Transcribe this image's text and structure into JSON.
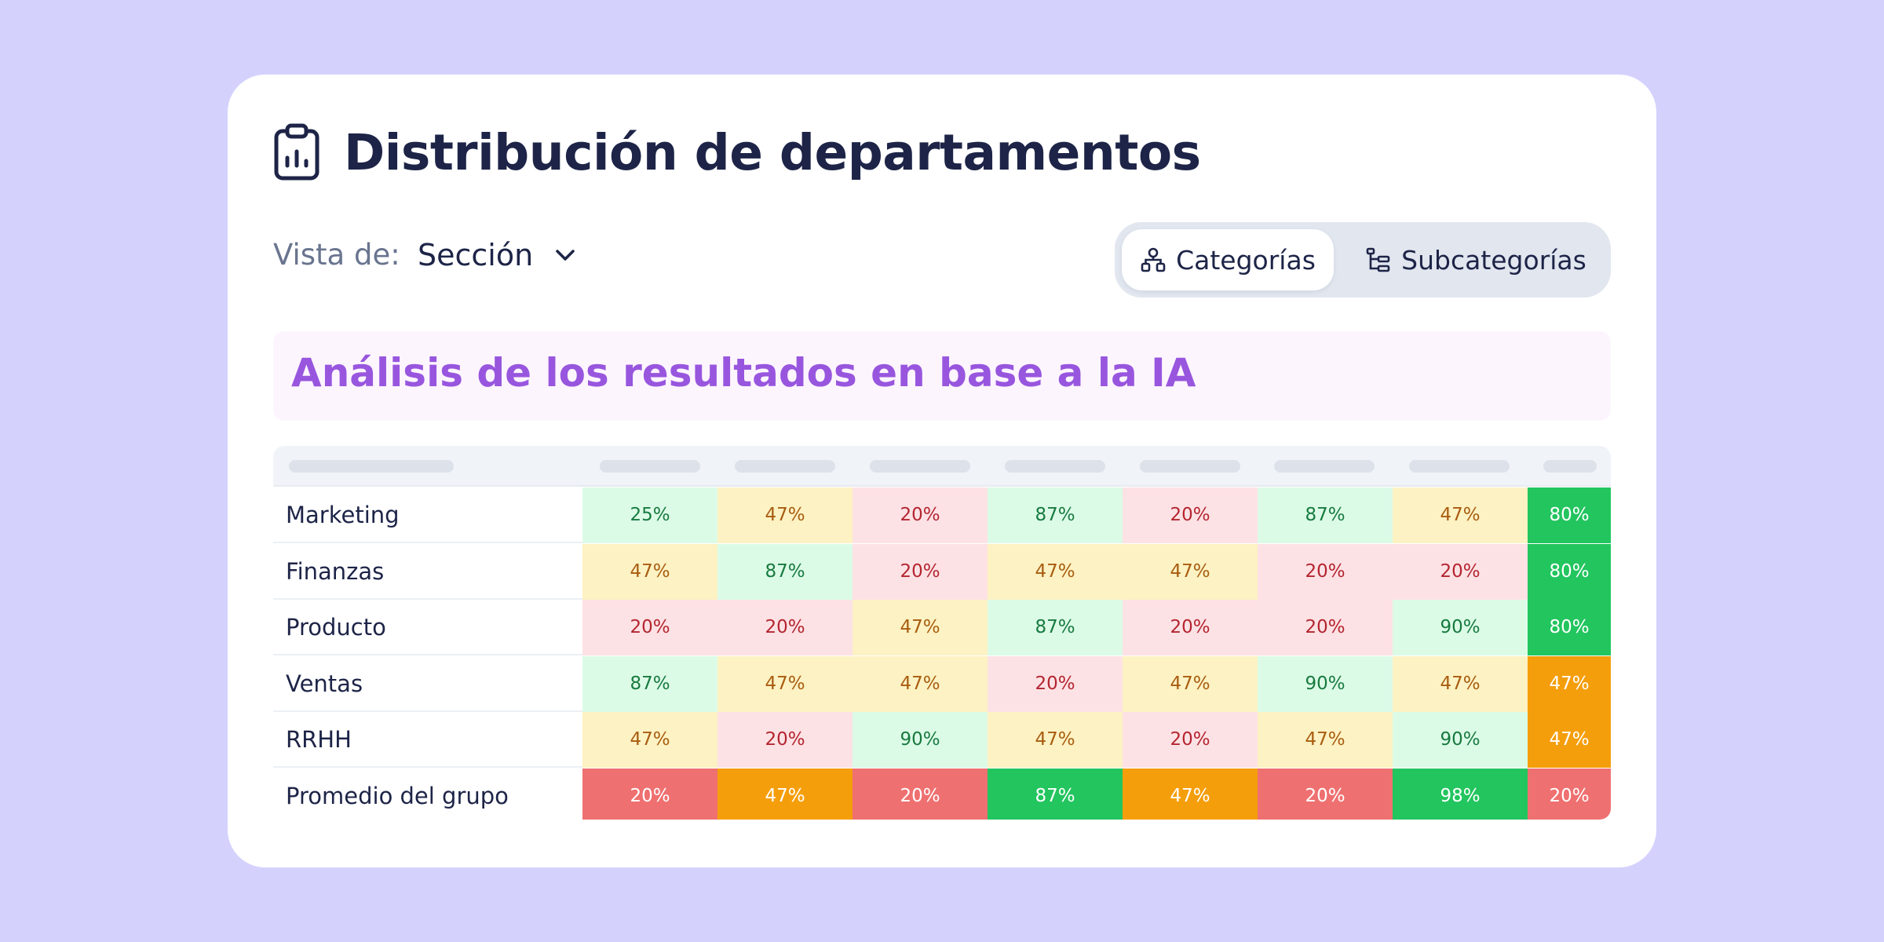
{
  "title": "Distribución de departamentos",
  "header_icon": "clipboard-chart-icon",
  "view": {
    "label": "Vista de:",
    "value": "Sección"
  },
  "tabs": [
    {
      "label": "Categorías",
      "icon": "hierarchy-icon",
      "active": true
    },
    {
      "label": "Subcategorías",
      "icon": "subcategory-tree-icon",
      "active": false
    }
  ],
  "ai_banner": "Análisis de los resultados en base a la IA",
  "colors": {
    "background": "#d4d2fd",
    "title": "#1d2447",
    "ai_text": "#9856de",
    "green": "#22c55e",
    "orange": "#f59e0b",
    "red": "#ef7070"
  },
  "table": {
    "rows": [
      {
        "label": "Marketing",
        "values": [
          "25%",
          "47%",
          "20%",
          "87%",
          "20%",
          "87%",
          "47%",
          "80%"
        ]
      },
      {
        "label": "Finanzas",
        "values": [
          "47%",
          "87%",
          "20%",
          "47%",
          "47%",
          "20%",
          "20%",
          "80%"
        ]
      },
      {
        "label": "Producto",
        "values": [
          "20%",
          "20%",
          "47%",
          "87%",
          "20%",
          "20%",
          "90%",
          "80%"
        ]
      },
      {
        "label": "Ventas",
        "values": [
          "87%",
          "47%",
          "47%",
          "20%",
          "47%",
          "90%",
          "47%",
          "47%"
        ]
      },
      {
        "label": "RRHH",
        "values": [
          "47%",
          "20%",
          "90%",
          "47%",
          "20%",
          "47%",
          "90%",
          "47%"
        ]
      },
      {
        "label": "Promedio del grupo",
        "values": [
          "20%",
          "47%",
          "20%",
          "87%",
          "47%",
          "20%",
          "98%",
          "20%"
        ]
      }
    ]
  }
}
